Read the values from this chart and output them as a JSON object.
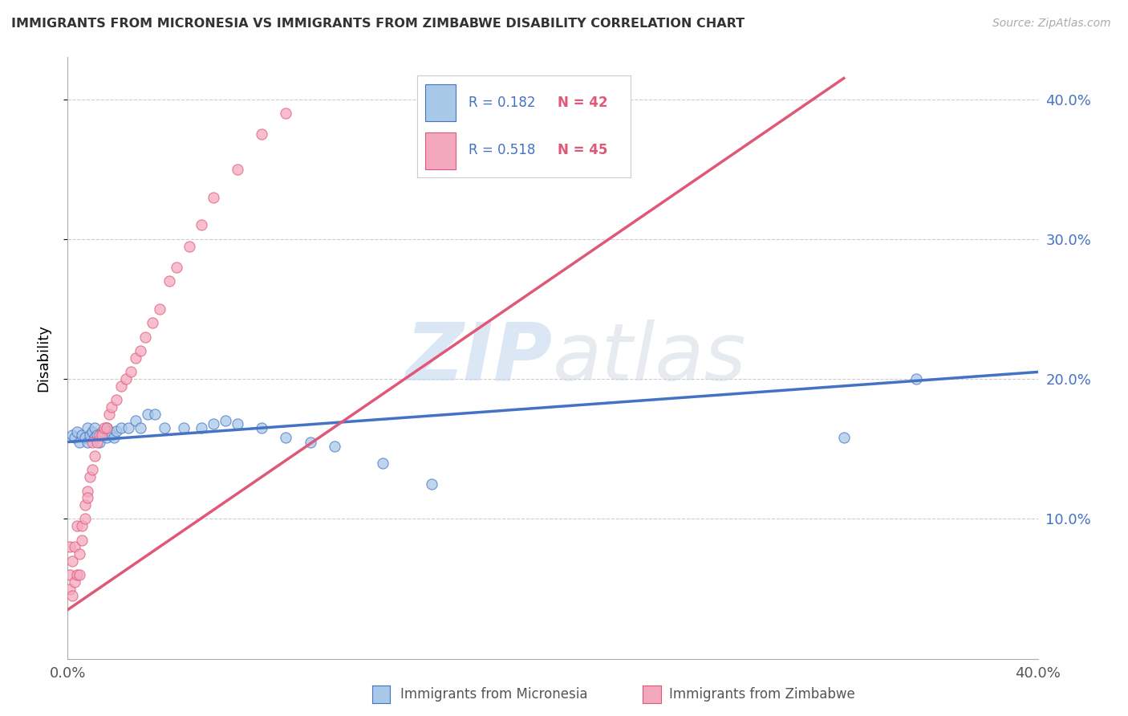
{
  "title": "IMMIGRANTS FROM MICRONESIA VS IMMIGRANTS FROM ZIMBABWE DISABILITY CORRELATION CHART",
  "source": "Source: ZipAtlas.com",
  "ylabel": "Disability",
  "xlim": [
    0.0,
    0.4
  ],
  "ylim": [
    0.0,
    0.43
  ],
  "yticks": [
    0.1,
    0.2,
    0.3,
    0.4
  ],
  "ytick_labels": [
    "10.0%",
    "20.0%",
    "30.0%",
    "40.0%"
  ],
  "legend_r1": "R = 0.182",
  "legend_n1": "N = 42",
  "legend_r2": "R = 0.518",
  "legend_n2": "N = 45",
  "color_micronesia": "#a8c8e8",
  "color_zimbabwe": "#f4a8c0",
  "color_line_micronesia": "#4472c4",
  "color_line_zimbabwe": "#e05878",
  "color_legend_text": "#4472c4",
  "color_n_text": "#e05878",
  "watermark_zip": "ZIP",
  "watermark_atlas": "atlas",
  "background_color": "#ffffff",
  "grid_color": "#cccccc",
  "mic_x": [
    0.002,
    0.003,
    0.004,
    0.005,
    0.006,
    0.007,
    0.008,
    0.008,
    0.009,
    0.01,
    0.011,
    0.011,
    0.012,
    0.013,
    0.014,
    0.015,
    0.016,
    0.016,
    0.017,
    0.018,
    0.019,
    0.02,
    0.022,
    0.025,
    0.028,
    0.03,
    0.033,
    0.036,
    0.04,
    0.048,
    0.055,
    0.06,
    0.065,
    0.07,
    0.08,
    0.09,
    0.1,
    0.11,
    0.13,
    0.15,
    0.32,
    0.35
  ],
  "mic_y": [
    0.16,
    0.158,
    0.162,
    0.155,
    0.16,
    0.158,
    0.165,
    0.155,
    0.16,
    0.162,
    0.158,
    0.165,
    0.16,
    0.155,
    0.162,
    0.16,
    0.158,
    0.165,
    0.163,
    0.16,
    0.158,
    0.163,
    0.165,
    0.165,
    0.17,
    0.165,
    0.175,
    0.175,
    0.165,
    0.165,
    0.165,
    0.168,
    0.17,
    0.168,
    0.165,
    0.158,
    0.155,
    0.152,
    0.14,
    0.125,
    0.158,
    0.2
  ],
  "zim_x": [
    0.001,
    0.001,
    0.001,
    0.002,
    0.002,
    0.003,
    0.003,
    0.004,
    0.004,
    0.005,
    0.005,
    0.006,
    0.006,
    0.007,
    0.007,
    0.008,
    0.008,
    0.009,
    0.01,
    0.01,
    0.011,
    0.012,
    0.013,
    0.014,
    0.015,
    0.016,
    0.017,
    0.018,
    0.02,
    0.022,
    0.024,
    0.026,
    0.028,
    0.03,
    0.032,
    0.035,
    0.038,
    0.042,
    0.045,
    0.05,
    0.055,
    0.06,
    0.07,
    0.08,
    0.09
  ],
  "zim_y": [
    0.05,
    0.06,
    0.08,
    0.045,
    0.07,
    0.055,
    0.08,
    0.06,
    0.095,
    0.075,
    0.06,
    0.095,
    0.085,
    0.11,
    0.1,
    0.12,
    0.115,
    0.13,
    0.135,
    0.155,
    0.145,
    0.155,
    0.16,
    0.16,
    0.165,
    0.165,
    0.175,
    0.18,
    0.185,
    0.195,
    0.2,
    0.205,
    0.215,
    0.22,
    0.23,
    0.24,
    0.25,
    0.27,
    0.28,
    0.295,
    0.31,
    0.33,
    0.35,
    0.375,
    0.39
  ],
  "mic_trend_x": [
    0.0,
    0.4
  ],
  "mic_trend_y": [
    0.155,
    0.205
  ],
  "zim_trend_x": [
    0.0,
    0.32
  ],
  "zim_trend_y": [
    0.035,
    0.415
  ]
}
